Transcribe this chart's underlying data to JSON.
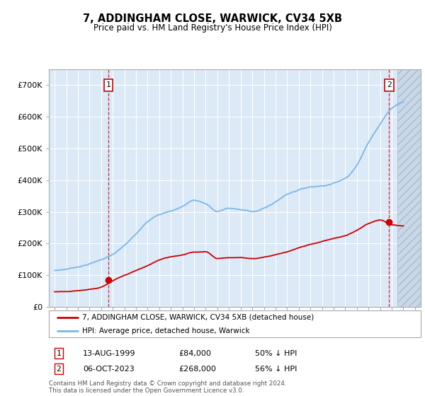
{
  "title": "7, ADDINGHAM CLOSE, WARWICK, CV34 5XB",
  "subtitle": "Price paid vs. HM Land Registry's House Price Index (HPI)",
  "ylim": [
    0,
    750000
  ],
  "yticks": [
    0,
    100000,
    200000,
    300000,
    400000,
    500000,
    600000,
    700000
  ],
  "ytick_labels": [
    "£0",
    "£100K",
    "£200K",
    "£300K",
    "£400K",
    "£500K",
    "£600K",
    "£700K"
  ],
  "background_color": "#ffffff",
  "plot_bg_color": "#dce9f7",
  "grid_color": "#ffffff",
  "hpi_color": "#7ab8e8",
  "price_color": "#cc0000",
  "marker1_date": 1999.62,
  "marker1_price": 84000,
  "marker2_date": 2023.76,
  "marker2_price": 268000,
  "legend_property": "7, ADDINGHAM CLOSE, WARWICK, CV34 5XB (detached house)",
  "legend_hpi": "HPI: Average price, detached house, Warwick",
  "footnote": "Contains HM Land Registry data © Crown copyright and database right 2024.\nThis data is licensed under the Open Government Licence v3.0.",
  "table": [
    {
      "num": "1",
      "date": "13-AUG-1999",
      "price": "£84,000",
      "rel": "50% ↓ HPI"
    },
    {
      "num": "2",
      "date": "06-OCT-2023",
      "price": "£268,000",
      "rel": "56% ↓ HPI"
    }
  ],
  "xmin": 1994.5,
  "xmax": 2026.5,
  "xticks": [
    1995,
    1996,
    1997,
    1998,
    1999,
    2000,
    2001,
    2002,
    2003,
    2004,
    2005,
    2006,
    2007,
    2008,
    2009,
    2010,
    2011,
    2012,
    2013,
    2014,
    2015,
    2016,
    2017,
    2018,
    2019,
    2020,
    2021,
    2022,
    2023,
    2024,
    2025,
    2026
  ],
  "hatch_xmin": 2024.5,
  "hatch_xmax": 2026.5,
  "hpi_keypoints": [
    [
      1995,
      115000
    ],
    [
      1996,
      120000
    ],
    [
      1997,
      128000
    ],
    [
      1998,
      138000
    ],
    [
      1999,
      152000
    ],
    [
      2000,
      168000
    ],
    [
      2001,
      195000
    ],
    [
      2002,
      230000
    ],
    [
      2003,
      268000
    ],
    [
      2004,
      295000
    ],
    [
      2005,
      305000
    ],
    [
      2006,
      320000
    ],
    [
      2007,
      340000
    ],
    [
      2008,
      330000
    ],
    [
      2009,
      305000
    ],
    [
      2010,
      315000
    ],
    [
      2011,
      310000
    ],
    [
      2012,
      305000
    ],
    [
      2013,
      315000
    ],
    [
      2014,
      335000
    ],
    [
      2015,
      360000
    ],
    [
      2016,
      375000
    ],
    [
      2017,
      385000
    ],
    [
      2018,
      390000
    ],
    [
      2019,
      400000
    ],
    [
      2020,
      415000
    ],
    [
      2021,
      460000
    ],
    [
      2022,
      530000
    ],
    [
      2023,
      590000
    ],
    [
      2024,
      640000
    ],
    [
      2025,
      660000
    ]
  ],
  "prop_keypoints": [
    [
      1995,
      48000
    ],
    [
      1996,
      50000
    ],
    [
      1997,
      53000
    ],
    [
      1998,
      58000
    ],
    [
      1999,
      65000
    ],
    [
      2000,
      84000
    ],
    [
      2001,
      100000
    ],
    [
      2002,
      115000
    ],
    [
      2003,
      130000
    ],
    [
      2004,
      148000
    ],
    [
      2005,
      158000
    ],
    [
      2006,
      165000
    ],
    [
      2007,
      175000
    ],
    [
      2008,
      175000
    ],
    [
      2009,
      155000
    ],
    [
      2010,
      158000
    ],
    [
      2011,
      158000
    ],
    [
      2012,
      155000
    ],
    [
      2013,
      160000
    ],
    [
      2014,
      168000
    ],
    [
      2015,
      178000
    ],
    [
      2016,
      190000
    ],
    [
      2017,
      200000
    ],
    [
      2018,
      210000
    ],
    [
      2019,
      220000
    ],
    [
      2020,
      228000
    ],
    [
      2021,
      245000
    ],
    [
      2022,
      265000
    ],
    [
      2023,
      275000
    ],
    [
      2024,
      260000
    ],
    [
      2025,
      255000
    ]
  ]
}
